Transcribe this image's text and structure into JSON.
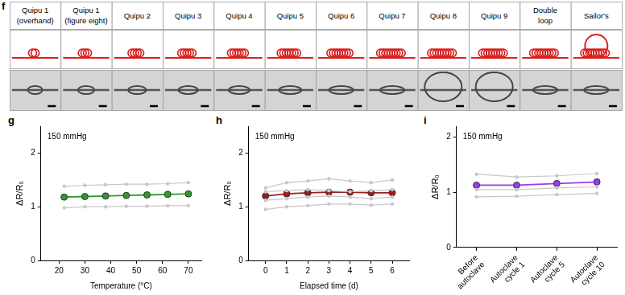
{
  "panel_f": {
    "panel_label": "f",
    "items": [
      [
        "Quipu 1",
        "(overhand)"
      ],
      [
        "Quipu 1",
        "(figure eight)"
      ],
      [
        "Quipu 2"
      ],
      [
        "Quipu 3"
      ],
      [
        "Quipu 4"
      ],
      [
        "Quipu 5"
      ],
      [
        "Quipu 6"
      ],
      [
        "Quipu 7"
      ],
      [
        "Quipu 8"
      ],
      [
        "Quipu 9"
      ],
      [
        "Double",
        "loop"
      ],
      [
        "Sailor's"
      ]
    ]
  },
  "chart_data": [
    {
      "type": "line",
      "panel_label": "g",
      "annotation": "150 mmHg",
      "x_label": "Temperature (°C)",
      "y_label": "ΔR/R₀",
      "x": [
        22,
        30,
        38,
        46,
        54,
        62,
        70
      ],
      "series": [
        {
          "color": "#c8c8c8",
          "marker": "circle",
          "values": [
            1.38,
            1.4,
            1.41,
            1.42,
            1.42,
            1.43,
            1.45
          ]
        },
        {
          "color": "#c8c8c8",
          "marker": "circle",
          "values": [
            0.98,
            1.0,
            1.0,
            1.01,
            1.01,
            1.02,
            1.02
          ]
        },
        {
          "color": "#2e9a2e",
          "marker": "circle",
          "values": [
            1.18,
            1.19,
            1.2,
            1.21,
            1.22,
            1.23,
            1.24
          ]
        }
      ],
      "xlim": [
        13,
        75
      ],
      "xticks": [
        20,
        30,
        40,
        50,
        60,
        70
      ],
      "ylim": [
        0,
        2.5
      ],
      "yticks": [
        0,
        1,
        2
      ],
      "grid": false
    },
    {
      "type": "line",
      "panel_label": "h",
      "annotation": "150 mmHg",
      "x_label": "Elapsed time (d)",
      "y_label": "ΔR/R₀",
      "x": [
        0,
        1,
        2,
        3,
        4,
        5,
        6
      ],
      "series": [
        {
          "color": "#c8c8c8",
          "marker": "circle",
          "values": [
            1.35,
            1.45,
            1.48,
            1.52,
            1.48,
            1.45,
            1.5
          ]
        },
        {
          "color": "#c8c8c8",
          "marker": "circle",
          "values": [
            1.28,
            1.3,
            1.32,
            1.3,
            1.28,
            1.3,
            1.32
          ]
        },
        {
          "color": "#c8c8c8",
          "marker": "circle",
          "values": [
            1.12,
            1.15,
            1.18,
            1.2,
            1.18,
            1.15,
            1.18
          ]
        },
        {
          "color": "#c8c8c8",
          "marker": "circle",
          "values": [
            0.95,
            1.0,
            1.02,
            1.05,
            1.05,
            1.03,
            1.05
          ]
        },
        {
          "color": "#a01c1c",
          "marker": "circle",
          "values": [
            1.2,
            1.24,
            1.26,
            1.27,
            1.27,
            1.26,
            1.26
          ]
        }
      ],
      "xlim": [
        -0.8,
        6.8
      ],
      "xticks": [
        0,
        1,
        2,
        3,
        4,
        5,
        6
      ],
      "ylim": [
        0,
        2.5
      ],
      "yticks": [
        0,
        1,
        2
      ],
      "grid": false
    },
    {
      "type": "line",
      "panel_label": "i",
      "annotation": "150 mmHg",
      "y_label": "ΔR/R₀",
      "categories": [
        "Before autoclave",
        "Autoclave cycle 1",
        "Autoclave cycle 5",
        "Autoclave cycle 10"
      ],
      "series": [
        {
          "color": "#c8c8c8",
          "marker": "circle",
          "values": [
            1.33,
            1.28,
            1.3,
            1.34
          ]
        },
        {
          "color": "#c8c8c8",
          "marker": "circle",
          "values": [
            1.05,
            1.05,
            1.08,
            1.1
          ]
        },
        {
          "color": "#c8c8c8",
          "marker": "circle",
          "values": [
            0.92,
            0.93,
            0.96,
            0.98
          ]
        },
        {
          "color": "#9a3cf0",
          "marker": "circle",
          "values": [
            1.13,
            1.13,
            1.16,
            1.19
          ]
        }
      ],
      "ylim": [
        0,
        2.2
      ],
      "yticks": [
        0,
        1,
        2
      ],
      "grid": false
    }
  ]
}
